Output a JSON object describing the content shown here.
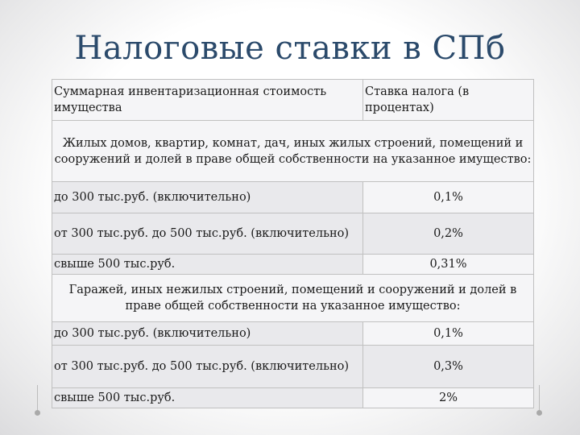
{
  "title": "Налоговые ставки в СПб",
  "table": {
    "header": {
      "col1": "Суммарная инвентаризационная стоимость имущества",
      "col2": "Ставка налога (в процентах)"
    },
    "section1": {
      "heading": "Жилых домов, квартир, комнат, дач, иных жилых строений, помещений и сооружений и долей в праве общей собственности на указанное имущество:",
      "rows": [
        {
          "range": "до 300 тыс.руб. (включительно)",
          "rate": "0,1%"
        },
        {
          "range": "от 300 тыс.руб. до 500 тыс.руб. (включительно)",
          "rate": "0,2%"
        },
        {
          "range": "свыше 500 тыс.руб.",
          "rate": "0,31%"
        }
      ]
    },
    "section2": {
      "heading": "Гаражей, иных нежилых строений, помещений и сооружений и долей в праве общей собственности на указанное имущество:",
      "rows": [
        {
          "range": "до 300 тыс.руб. (включительно)",
          "rate": "0,1%"
        },
        {
          "range": "от 300 тыс.руб. до 500 тыс.руб. (включительно)",
          "rate": "0,3%"
        },
        {
          "range": "свыше 500 тыс.руб.",
          "rate": "2%"
        }
      ]
    }
  }
}
